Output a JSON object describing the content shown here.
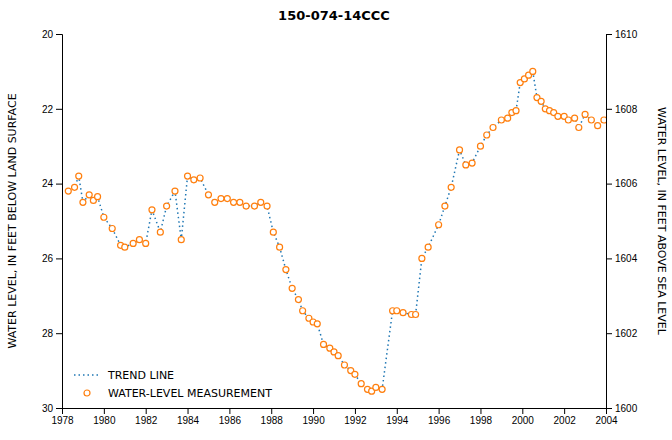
{
  "chart_data": {
    "type": "line",
    "title": "150-074-14CCC",
    "ylabel": "WATER LEVEL, IN FEET BELOW LAND SURFACE",
    "y2label": "WATER LEVEL, IN FEET ABOVE SEA LEVEL",
    "xlim": [
      1978,
      2004
    ],
    "ylim": [
      30,
      20
    ],
    "y2lim": [
      1600,
      1610
    ],
    "xticks": [
      1978,
      1980,
      1982,
      1984,
      1986,
      1988,
      1990,
      1992,
      1994,
      1996,
      1998,
      2000,
      2002,
      2004
    ],
    "yticks": [
      20,
      22,
      24,
      26,
      28,
      30
    ],
    "y2ticks": [
      1600,
      1602,
      1604,
      1606,
      1608,
      1610
    ],
    "grid": false,
    "legend": "lower left",
    "x": [
      1978.3,
      1978.6,
      1978.8,
      1979.0,
      1979.3,
      1979.5,
      1979.7,
      1980.0,
      1980.4,
      1980.8,
      1981.0,
      1981.4,
      1981.7,
      1982.0,
      1982.3,
      1982.7,
      1983.0,
      1983.4,
      1983.7,
      1984.0,
      1984.3,
      1984.6,
      1985.0,
      1985.3,
      1985.6,
      1985.9,
      1986.2,
      1986.5,
      1986.8,
      1987.2,
      1987.5,
      1987.8,
      1988.1,
      1988.4,
      1988.7,
      1989.0,
      1989.3,
      1989.5,
      1989.8,
      1990.0,
      1990.2,
      1990.5,
      1990.8,
      1991.0,
      1991.2,
      1991.5,
      1991.8,
      1992.0,
      1992.3,
      1992.6,
      1992.8,
      1993.0,
      1993.3,
      1993.8,
      1994.0,
      1994.3,
      1994.7,
      1994.9,
      1995.2,
      1995.5,
      1996.0,
      1996.3,
      1996.6,
      1997.0,
      1997.3,
      1997.6,
      1998.0,
      1998.3,
      1998.6,
      1999.0,
      1999.3,
      1999.5,
      1999.7,
      1999.9,
      2000.1,
      2000.3,
      2000.5,
      2000.7,
      2000.9,
      2001.1,
      2001.3,
      2001.5,
      2001.7,
      2002.0,
      2002.2,
      2002.5,
      2002.7,
      2003.0,
      2003.3,
      2003.6,
      2003.9
    ],
    "series": [
      {
        "name": "TREND LINE",
        "type": "line",
        "line_style": "dotted",
        "values": [
          24.2,
          24.1,
          23.8,
          24.5,
          24.3,
          24.45,
          24.35,
          24.9,
          25.2,
          25.65,
          25.7,
          25.6,
          25.5,
          25.6,
          24.7,
          25.3,
          24.6,
          24.2,
          25.5,
          23.8,
          23.9,
          23.85,
          24.3,
          24.5,
          24.4,
          24.4,
          24.5,
          24.5,
          24.6,
          24.6,
          24.5,
          24.6,
          25.3,
          25.7,
          26.3,
          26.8,
          27.1,
          27.4,
          27.6,
          27.7,
          27.75,
          28.3,
          28.4,
          28.5,
          28.6,
          28.85,
          29.0,
          29.1,
          29.35,
          29.5,
          29.55,
          29.45,
          29.5,
          27.4,
          27.4,
          27.45,
          27.5,
          27.5,
          26.0,
          25.7,
          25.1,
          24.6,
          24.1,
          23.1,
          23.5,
          23.45,
          23.0,
          22.7,
          22.5,
          22.3,
          22.25,
          22.1,
          22.05,
          21.3,
          21.2,
          21.1,
          21.0,
          21.7,
          21.8,
          22.0,
          22.05,
          22.1,
          22.2,
          22.2,
          22.3,
          22.25,
          22.5,
          22.15,
          22.3,
          22.45,
          22.3
        ]
      },
      {
        "name": "WATER-LEVEL MEASUREMENT",
        "type": "scatter",
        "marker": "circle",
        "values": [
          24.2,
          24.1,
          23.8,
          24.5,
          24.3,
          24.45,
          24.35,
          24.9,
          25.2,
          25.65,
          25.7,
          25.6,
          25.5,
          25.6,
          24.7,
          25.3,
          24.6,
          24.2,
          25.5,
          23.8,
          23.9,
          23.85,
          24.3,
          24.5,
          24.4,
          24.4,
          24.5,
          24.5,
          24.6,
          24.6,
          24.5,
          24.6,
          25.3,
          25.7,
          26.3,
          26.8,
          27.1,
          27.4,
          27.6,
          27.7,
          27.75,
          28.3,
          28.4,
          28.5,
          28.6,
          28.85,
          29.0,
          29.1,
          29.35,
          29.5,
          29.55,
          29.45,
          29.5,
          27.4,
          27.4,
          27.45,
          27.5,
          27.5,
          26.0,
          25.7,
          25.1,
          24.6,
          24.1,
          23.1,
          23.5,
          23.45,
          23.0,
          22.7,
          22.5,
          22.3,
          22.25,
          22.1,
          22.05,
          21.3,
          21.2,
          21.1,
          21.0,
          21.7,
          21.8,
          22.0,
          22.05,
          22.1,
          22.2,
          22.2,
          22.3,
          22.25,
          22.5,
          22.15,
          22.3,
          22.45,
          22.3
        ]
      }
    ]
  }
}
